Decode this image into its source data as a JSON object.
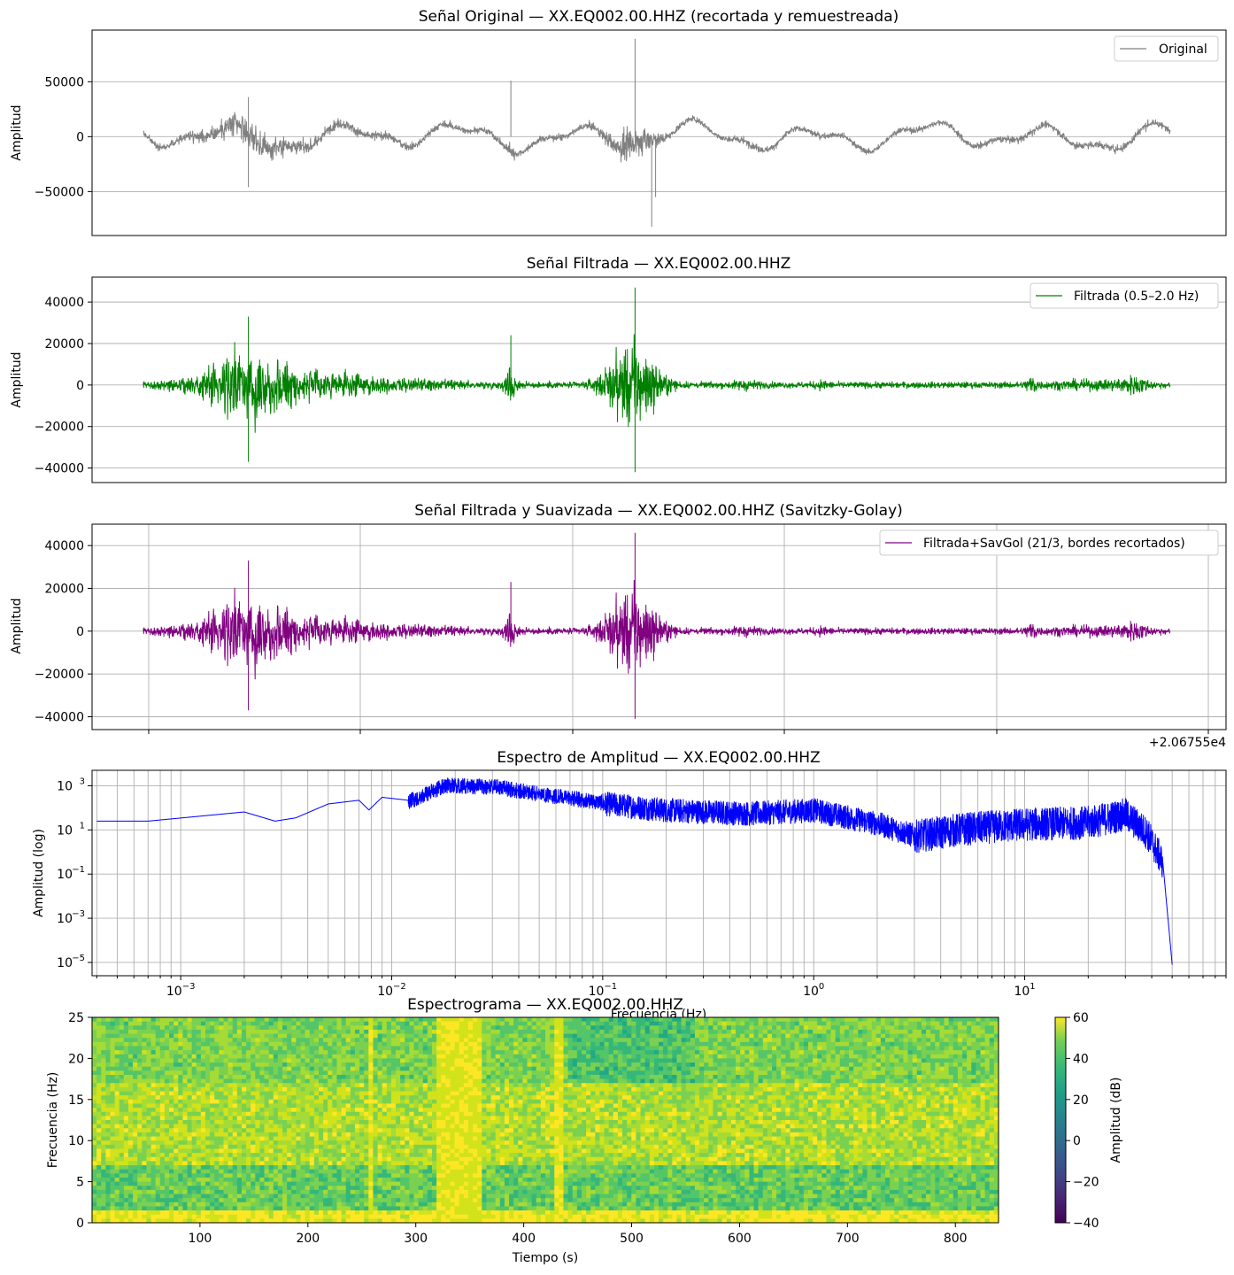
{
  "station": "XX.EQ002.00.HHZ",
  "chart_data": [
    {
      "type": "line",
      "title": "Señal Original — XX.EQ002.00.HHZ (recortada y remuestreada)",
      "xlabel": "",
      "ylabel": "Amplitud",
      "ylim": [
        -90000,
        97000
      ],
      "yticks": [
        50000,
        0,
        -50000
      ],
      "ytick_labels": [
        "50000",
        "0",
        "−50000"
      ],
      "grid": "horizontal",
      "legend": "top-right",
      "series": [
        {
          "name": "Original",
          "color": "#808080"
        }
      ],
      "annotated_peaks": [
        {
          "x_s": 130,
          "y": 36000
        },
        {
          "x_s": 130,
          "y": -46000
        },
        {
          "x_s": 335,
          "y": 51000
        },
        {
          "x_s": 432,
          "y": 89000
        },
        {
          "x_s": 445,
          "y": -82000
        },
        {
          "x_s": 448,
          "y": -55000
        }
      ]
    },
    {
      "type": "line",
      "title": "Señal Filtrada — XX.EQ002.00.HHZ",
      "xlabel": "",
      "ylabel": "Amplitud",
      "ylim": [
        -47000,
        52000
      ],
      "yticks": [
        40000,
        20000,
        0,
        -20000,
        -40000
      ],
      "ytick_labels": [
        "40000",
        "20000",
        "0",
        "−20000",
        "−40000"
      ],
      "grid": "horizontal",
      "legend": "top-right",
      "series": [
        {
          "name": "Filtrada (0.5–2.0 Hz)",
          "color": "#008000"
        }
      ],
      "annotated_peaks": [
        {
          "x_s": 130,
          "y": 33000
        },
        {
          "x_s": 130,
          "y": -37000
        },
        {
          "x_s": 335,
          "y": 24000
        },
        {
          "x_s": 432,
          "y": 47000
        },
        {
          "x_s": 432,
          "y": -42000
        }
      ]
    },
    {
      "type": "line",
      "title": "Señal Filtrada y Suavizada — XX.EQ002.00.HHZ (Savitzky-Golay)",
      "xlabel": "",
      "ylabel": "Amplitud",
      "ylim": [
        -46000,
        50000
      ],
      "yticks": [
        40000,
        20000,
        0,
        -20000,
        -40000
      ],
      "ytick_labels": [
        "40000",
        "20000",
        "0",
        "−20000",
        "−40000"
      ],
      "x_offset_label": "+2.06755e4",
      "grid": "both",
      "legend": "top-right",
      "series": [
        {
          "name": "Filtrada+SavGol (21/3, bordes recortados)",
          "color": "#800080"
        }
      ],
      "annotated_peaks": [
        {
          "x_s": 130,
          "y": 33000
        },
        {
          "x_s": 130,
          "y": -37000
        },
        {
          "x_s": 335,
          "y": 23000
        },
        {
          "x_s": 432,
          "y": 46000
        },
        {
          "x_s": 432,
          "y": -41000
        }
      ]
    },
    {
      "type": "line",
      "title": "Espectro de Amplitud — XX.EQ002.00.HHZ",
      "xlabel": "Frecuencia (Hz)",
      "ylabel": "Amplitud (log)",
      "xscale": "log",
      "yscale": "log",
      "xlim": [
        0.00038,
        90
      ],
      "ylim": [
        2.5e-06,
        5000
      ],
      "xticks": [
        0.001,
        0.01,
        0.1,
        1,
        10
      ],
      "xtick_base": [
        "10",
        "10",
        "10",
        "10",
        "10"
      ],
      "xtick_exp": [
        "−3",
        "−2",
        "−1",
        "0",
        "1"
      ],
      "yticks": [
        1000,
        10,
        0.1,
        0.001,
        1e-05
      ],
      "ytick_base": [
        "10",
        "10",
        "10",
        "10",
        "10"
      ],
      "ytick_exp": [
        "3",
        "1",
        "−1",
        "−3",
        "−5"
      ],
      "grid": "both",
      "series": [
        {
          "name": "",
          "color": "#0000ff",
          "points": [
            [
              0.0004,
              25
            ],
            [
              0.0007,
              25
            ],
            [
              0.002,
              65
            ],
            [
              0.0028,
              25
            ],
            [
              0.0035,
              35
            ],
            [
              0.005,
              150
            ],
            [
              0.007,
              220
            ],
            [
              0.0078,
              80
            ],
            [
              0.009,
              300
            ],
            [
              0.012,
              220
            ],
            [
              0.018,
              1200
            ],
            [
              0.025,
              1100
            ],
            [
              0.032,
              1000
            ],
            [
              0.05,
              500
            ],
            [
              0.1,
              200
            ],
            [
              0.2,
              100
            ],
            [
              0.5,
              70
            ],
            [
              1,
              100
            ],
            [
              2,
              25
            ],
            [
              3,
              7
            ],
            [
              5,
              15
            ],
            [
              10,
              25
            ],
            [
              20,
              30
            ],
            [
              30,
              70
            ],
            [
              38,
              10
            ],
            [
              45,
              0.5
            ],
            [
              50,
              8e-06
            ]
          ]
        }
      ]
    },
    {
      "type": "heatmap",
      "title": "Espectrograma — XX.EQ002.00.HHZ",
      "xlabel": "Tiempo (s)",
      "ylabel": "Frecuencia (Hz)",
      "xlim": [
        0,
        840
      ],
      "ylim": [
        0,
        25
      ],
      "xticks": [
        100,
        200,
        300,
        400,
        500,
        600,
        700,
        800
      ],
      "xtick_labels": [
        "100",
        "200",
        "300",
        "400",
        "500",
        "600",
        "700",
        "800"
      ],
      "yticks": [
        0,
        5,
        10,
        15,
        20,
        25
      ],
      "ytick_labels": [
        "0",
        "5",
        "10",
        "15",
        "20",
        "25"
      ],
      "colorbar_label": "Amplitud (dB)",
      "colorbar_range": [
        -40,
        60
      ],
      "colorbar_ticks": [
        60,
        40,
        20,
        0,
        -20,
        -40
      ],
      "colorbar_tick_labels": [
        "60",
        "40",
        "20",
        "0",
        "−20",
        "−40"
      ],
      "colormap": "viridis",
      "bright_bands_s": [
        [
          320,
          360
        ],
        [
          428,
          436
        ],
        [
          255,
          262
        ]
      ]
    }
  ]
}
